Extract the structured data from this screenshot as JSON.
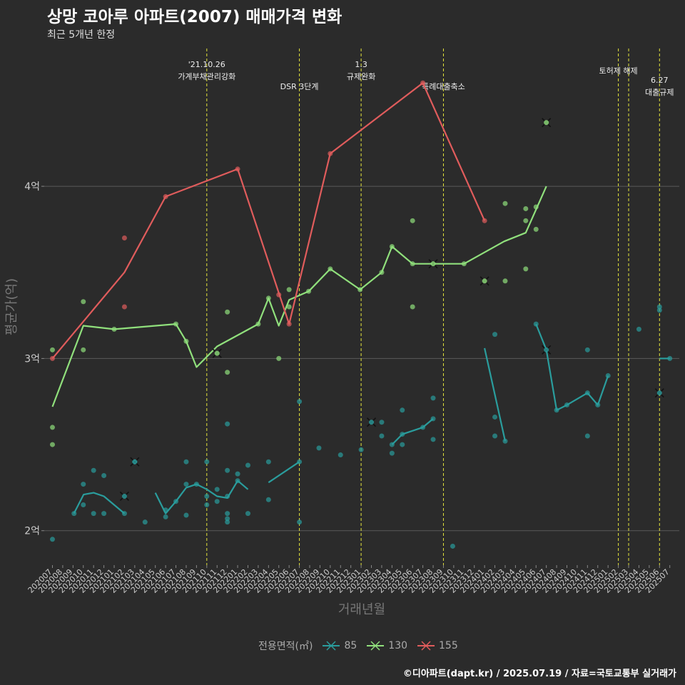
{
  "title": "상망 코아루 아파트(2007) 매매가격 변화",
  "subtitle": "최근 5개년 한정",
  "caption": "©디아파트(dapt.kr) / 2025.07.19 / 자료=국토교통부 실거래가",
  "chart_data": {
    "type": "line",
    "xlabel": "거래년월",
    "ylabel": "평균가(억)",
    "ylim": [
      1.8,
      4.8
    ],
    "yticks": [
      {
        "v": 2,
        "label": "2억"
      },
      {
        "v": 3,
        "label": "3억"
      },
      {
        "v": 4,
        "label": "4억"
      }
    ],
    "grid": "horizontal",
    "legend_title": "전용면적(㎡)",
    "legend_position": "bottom",
    "categories": [
      "202007",
      "202008",
      "202009",
      "202010",
      "202011",
      "202012",
      "202101",
      "202102",
      "202103",
      "202104",
      "202105",
      "202106",
      "202107",
      "202108",
      "202109",
      "202110",
      "202111",
      "202112",
      "202201",
      "202202",
      "202203",
      "202204",
      "202205",
      "202206",
      "202207",
      "202208",
      "202209",
      "202210",
      "202211",
      "202212",
      "202301",
      "202302",
      "202303",
      "202304",
      "202305",
      "202306",
      "202307",
      "202308",
      "202309",
      "202310",
      "202311",
      "202312",
      "202401",
      "202402",
      "202403",
      "202404",
      "202405",
      "202406",
      "202407",
      "202408",
      "202409",
      "202410",
      "202411",
      "202412",
      "202501",
      "202502",
      "202503",
      "202504",
      "202505",
      "202506",
      "202507"
    ],
    "series": [
      {
        "name": "85",
        "color": "#2a9d9d",
        "line": [
          [
            [
              2.09,
              2.1
            ],
            [
              3.03,
              2.21
            ],
            [
              4.0,
              2.22
            ],
            [
              5.0,
              2.2
            ],
            [
              7.0,
              2.1
            ]
          ],
          [
            [
              10.0,
              2.22
            ],
            [
              11.0,
              2.1
            ],
            [
              12.0,
              2.17
            ],
            [
              13.0,
              2.25
            ],
            [
              14.0,
              2.27
            ],
            [
              15.0,
              2.24
            ],
            [
              16.0,
              2.2
            ],
            [
              17.0,
              2.19
            ],
            [
              18.0,
              2.29
            ],
            [
              19.0,
              2.24
            ]
          ],
          [
            [
              21.0,
              2.28
            ],
            [
              24.0,
              2.4
            ]
          ],
          [
            [
              33.0,
              2.5
            ],
            [
              34.0,
              2.56
            ],
            [
              36.0,
              2.6
            ],
            [
              37.0,
              2.65
            ]
          ],
          [
            [
              42.0,
              3.06
            ],
            [
              44.0,
              2.52
            ]
          ],
          [
            [
              47.0,
              3.2
            ],
            [
              48.0,
              3.05
            ],
            [
              49.0,
              2.7
            ],
            [
              50.0,
              2.73
            ],
            [
              52.0,
              2.8
            ],
            [
              53.0,
              2.73
            ],
            [
              54.0,
              2.9
            ]
          ],
          [
            [
              59.0,
              3.0
            ],
            [
              60.0,
              3.0
            ]
          ]
        ],
        "points": [
          [
            0.0,
            1.95
          ],
          [
            2.1,
            2.1
          ],
          [
            3.0,
            2.27
          ],
          [
            3.0,
            2.15
          ],
          [
            4.0,
            2.35
          ],
          [
            4.0,
            2.1
          ],
          [
            5.0,
            2.32
          ],
          [
            5.0,
            2.1
          ],
          [
            7.0,
            2.1
          ],
          [
            8.0,
            2.4
          ],
          [
            9.0,
            2.05
          ],
          [
            11.0,
            2.12
          ],
          [
            11.0,
            2.08
          ],
          [
            12.0,
            2.17
          ],
          [
            13.0,
            2.4
          ],
          [
            13.0,
            2.27
          ],
          [
            13.0,
            2.09
          ],
          [
            14.0,
            2.27
          ],
          [
            15.0,
            2.4
          ],
          [
            15.0,
            2.2
          ],
          [
            15.0,
            2.15
          ],
          [
            16.0,
            2.24
          ],
          [
            16.0,
            2.17
          ],
          [
            17.0,
            2.62
          ],
          [
            17.0,
            2.35
          ],
          [
            17.0,
            2.2
          ],
          [
            17.0,
            2.1
          ],
          [
            17.0,
            2.07
          ],
          [
            17.0,
            2.05
          ],
          [
            18.0,
            2.33
          ],
          [
            18.0,
            2.29
          ],
          [
            19.0,
            2.1
          ],
          [
            19.0,
            2.38
          ],
          [
            21.0,
            2.18
          ],
          [
            21.0,
            2.4
          ],
          [
            24.0,
            2.75
          ],
          [
            24.0,
            2.4
          ],
          [
            24.0,
            2.05
          ],
          [
            25.9,
            2.48
          ],
          [
            28.0,
            2.44
          ],
          [
            30.0,
            2.47
          ],
          [
            32.0,
            2.63
          ],
          [
            32.0,
            2.55
          ],
          [
            33.0,
            2.5
          ],
          [
            33.0,
            2.45
          ],
          [
            34.0,
            2.7
          ],
          [
            34.0,
            2.56
          ],
          [
            34.0,
            2.5
          ],
          [
            36.0,
            2.6
          ],
          [
            37.0,
            2.77
          ],
          [
            37.0,
            2.65
          ],
          [
            37.0,
            2.53
          ],
          [
            38.9,
            1.91
          ],
          [
            43.0,
            3.14
          ],
          [
            43.0,
            2.66
          ],
          [
            43.0,
            2.55
          ],
          [
            44.0,
            2.52
          ],
          [
            47.0,
            3.2
          ],
          [
            49.0,
            2.7
          ],
          [
            50.0,
            2.73
          ],
          [
            52.0,
            2.8
          ],
          [
            52.0,
            2.55
          ],
          [
            52.0,
            3.05
          ],
          [
            53.0,
            2.73
          ],
          [
            54.0,
            2.9
          ],
          [
            57.0,
            3.17
          ],
          [
            59.0,
            3.28
          ],
          [
            59.0,
            3.3
          ],
          [
            60.0,
            3.0
          ]
        ],
        "crosses": [
          [
            8.0,
            2.4
          ],
          [
            7.0,
            2.2
          ],
          [
            31.0,
            2.63
          ],
          [
            48.0,
            3.05
          ],
          [
            59.0,
            2.8
          ]
        ]
      },
      {
        "name": "130",
        "color": "#90e07c",
        "line": [
          [
            [
              0.0,
              2.72
            ],
            [
              3.0,
              3.19
            ],
            [
              6.0,
              3.17
            ],
            [
              12.0,
              3.2
            ],
            [
              13.0,
              3.1
            ],
            [
              14.0,
              2.95
            ],
            [
              16.0,
              3.07
            ],
            [
              20.0,
              3.2
            ],
            [
              21.0,
              3.35
            ],
            [
              22.0,
              3.19
            ],
            [
              23.0,
              3.34
            ],
            [
              24.9,
              3.39
            ],
            [
              27.0,
              3.52
            ],
            [
              29.9,
              3.4
            ],
            [
              32.0,
              3.5
            ],
            [
              33.0,
              3.65
            ],
            [
              35.0,
              3.55
            ],
            [
              39.0,
              3.55
            ],
            [
              40.0,
              3.55
            ],
            [
              43.9,
              3.68
            ],
            [
              46.0,
              3.73
            ],
            [
              48.0,
              4.0
            ]
          ]
        ],
        "points": [
          [
            0.0,
            3.05
          ],
          [
            0.0,
            2.6
          ],
          [
            0.0,
            2.5
          ],
          [
            3.0,
            3.33
          ],
          [
            3.0,
            3.05
          ],
          [
            6.0,
            3.17
          ],
          [
            12.0,
            3.2
          ],
          [
            13.0,
            3.1
          ],
          [
            17.0,
            3.27
          ],
          [
            17.0,
            2.92
          ],
          [
            20.0,
            3.2
          ],
          [
            21.0,
            3.35
          ],
          [
            22.0,
            3.0
          ],
          [
            23.0,
            3.4
          ],
          [
            23.0,
            3.3
          ],
          [
            24.9,
            3.39
          ],
          [
            27.0,
            3.52
          ],
          [
            29.9,
            3.4
          ],
          [
            32.0,
            3.5
          ],
          [
            33.0,
            3.65
          ],
          [
            35.0,
            3.8
          ],
          [
            35.0,
            3.55
          ],
          [
            35.0,
            3.3
          ],
          [
            40.0,
            3.55
          ],
          [
            44.0,
            3.45
          ],
          [
            44.0,
            3.9
          ],
          [
            46.0,
            3.87
          ],
          [
            46.0,
            3.8
          ],
          [
            46.0,
            3.52
          ],
          [
            47.0,
            3.88
          ],
          [
            47.0,
            3.75
          ]
        ],
        "crosses": [
          [
            16.0,
            3.03
          ],
          [
            37.0,
            3.55
          ],
          [
            42.0,
            3.45
          ],
          [
            48.0,
            4.37
          ]
        ]
      },
      {
        "name": "155",
        "color": "#e05c5c",
        "line": [
          [
            [
              0.0,
              3.0
            ],
            [
              7.0,
              3.5
            ],
            [
              11.0,
              3.94
            ],
            [
              18.0,
              4.1
            ],
            [
              23.0,
              3.2
            ],
            [
              27.0,
              4.19
            ],
            [
              36.0,
              4.6
            ],
            [
              42.0,
              3.8
            ]
          ]
        ],
        "points": [
          [
            0.0,
            3.0
          ],
          [
            7.0,
            3.7
          ],
          [
            7.0,
            3.3
          ],
          [
            11.0,
            3.94
          ],
          [
            18.0,
            4.1
          ],
          [
            22.0,
            3.37
          ],
          [
            23.0,
            3.2
          ],
          [
            27.0,
            4.19
          ],
          [
            36.0,
            4.6
          ],
          [
            42.0,
            3.8
          ]
        ],
        "crosses": []
      }
    ],
    "events": [
      {
        "x": 15,
        "lines": [
          "'21.10.26",
          "가계부채관리강화"
        ]
      },
      {
        "x": 24,
        "lines": [
          "DSR 3단계"
        ]
      },
      {
        "x": 30,
        "lines": [
          "1.3",
          "규제완화"
        ]
      },
      {
        "x": 38,
        "lines": [
          "특례대출축소"
        ]
      },
      {
        "x": 55,
        "lines": [
          "토허제 해제"
        ]
      },
      {
        "x": 56,
        "lines": []
      },
      {
        "x": 59,
        "lines": [
          "6.27",
          "대출규제"
        ]
      }
    ]
  }
}
